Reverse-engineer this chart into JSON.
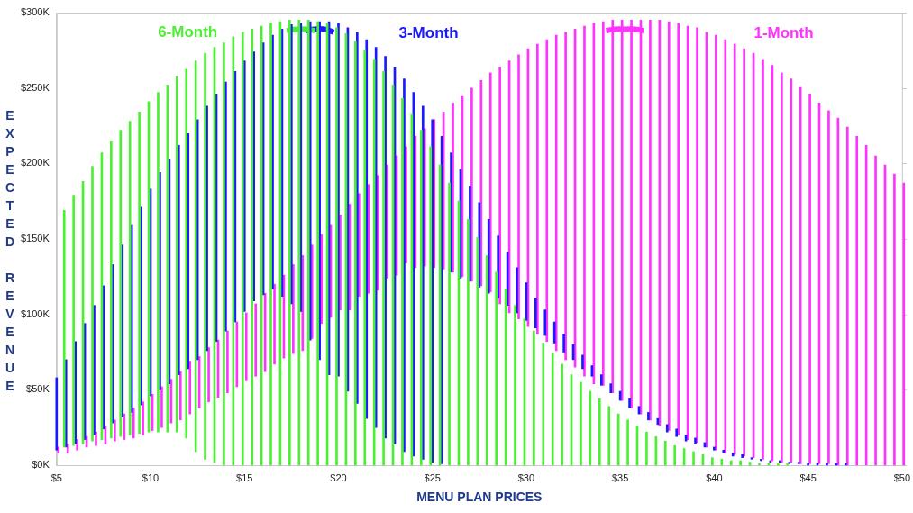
{
  "chart_data": {
    "type": "bar",
    "xlabel": "MENU PLAN PRICES",
    "ylabel": "EXPECTED REVENUE",
    "marker": "none",
    "x": [
      5,
      5.5,
      6,
      6.5,
      7,
      7.5,
      8,
      8.5,
      9,
      9.5,
      10,
      10.5,
      11,
      11.5,
      12,
      12.5,
      13,
      13.5,
      14,
      14.5,
      15,
      15.5,
      16,
      16.5,
      17,
      17.5,
      18,
      18.5,
      19,
      19.5,
      20,
      20.5,
      21,
      21.5,
      22,
      22.5,
      23,
      23.5,
      24,
      24.5,
      25,
      25.5,
      26,
      26.5,
      27,
      27.5,
      28,
      28.5,
      29,
      29.5,
      30,
      30.5,
      31,
      31.5,
      32,
      32.5,
      33,
      33.5,
      34,
      34.5,
      35,
      35.5,
      36,
      36.5,
      37,
      37.5,
      38,
      38.5,
      39,
      39.5,
      40,
      40.5,
      41,
      41.5,
      42,
      42.5,
      43,
      43.5,
      44,
      44.5,
      45,
      45.5,
      46,
      46.5,
      47,
      47.5,
      48,
      48.5,
      49,
      49.5,
      50
    ],
    "xlim": [
      5,
      50
    ],
    "xticks": [
      {
        "value": 5,
        "label": "$5"
      },
      {
        "value": 10,
        "label": "$10"
      },
      {
        "value": 15,
        "label": "$15"
      },
      {
        "value": 20,
        "label": "$20"
      },
      {
        "value": 25,
        "label": "$25"
      },
      {
        "value": 30,
        "label": "$30"
      },
      {
        "value": 35,
        "label": "$35"
      },
      {
        "value": 40,
        "label": "$40"
      },
      {
        "value": 45,
        "label": "$45"
      },
      {
        "value": 50,
        "label": "$50"
      }
    ],
    "ylim": [
      0,
      300
    ],
    "yticks": [
      {
        "value": 0,
        "label": "$0K"
      },
      {
        "value": 50,
        "label": "$50K"
      },
      {
        "value": 100,
        "label": "$100K"
      },
      {
        "value": 150,
        "label": "$150K"
      },
      {
        "value": 200,
        "label": "$200K"
      },
      {
        "value": 250,
        "label": "$250K"
      },
      {
        "value": 300,
        "label": "$300K"
      }
    ],
    "series": [
      {
        "name": "6-Month",
        "color": "#4cf032",
        "base": [
          null,
          12,
          13,
          14,
          16,
          17,
          18,
          19,
          20,
          21,
          22,
          22,
          22,
          22,
          18,
          9,
          4,
          2,
          0,
          0,
          0,
          0,
          0,
          0,
          0,
          0,
          0,
          0,
          0,
          0,
          0,
          0,
          0,
          0,
          0,
          0,
          0,
          0,
          0,
          0,
          0,
          0,
          0,
          0,
          0,
          0,
          0,
          0,
          0,
          0,
          0,
          0,
          0,
          0,
          0,
          0,
          0,
          0,
          0,
          0,
          0,
          0,
          0,
          0,
          0,
          0,
          0,
          0,
          0,
          0,
          0,
          0,
          0,
          0,
          0,
          0,
          0,
          0,
          0,
          null,
          null,
          null,
          null,
          null,
          null,
          null,
          null,
          null,
          null,
          null,
          null
        ],
        "values": [
          null,
          157,
          166,
          174,
          182,
          190,
          197,
          203,
          208,
          213,
          219,
          225,
          230,
          236,
          245,
          259,
          269,
          275,
          280,
          284,
          287,
          289,
          291,
          293,
          294,
          295,
          295,
          295,
          294,
          293,
          290,
          286,
          281,
          275,
          269,
          261,
          252,
          243,
          233,
          222,
          211,
          199,
          187,
          175,
          163,
          151,
          139,
          128,
          117,
          106,
          97,
          89,
          81,
          74,
          67,
          60,
          55,
          49,
          44,
          39,
          34,
          30,
          26,
          22,
          19,
          16,
          13,
          11,
          9,
          7,
          5,
          4,
          3,
          3,
          2,
          1,
          1,
          1,
          1,
          null,
          null,
          null,
          null,
          null,
          null,
          null,
          null,
          null,
          null,
          null,
          null
        ]
      },
      {
        "name": "3-Month",
        "color": "#1a1aff",
        "base": [
          10,
          12,
          14,
          17,
          20,
          24,
          28,
          32,
          35,
          40,
          46,
          50,
          54,
          60,
          64,
          70,
          76,
          82,
          89,
          95,
          102,
          109,
          113,
          117,
          112,
          107,
          102,
          83,
          70,
          60,
          59,
          49,
          41,
          31,
          25,
          18,
          14,
          9,
          6,
          4,
          2,
          1,
          128,
          124,
          122,
          118,
          114,
          111,
          106,
          101,
          96,
          91,
          86,
          81,
          75,
          70,
          64,
          59,
          53,
          48,
          43,
          38,
          34,
          30,
          27,
          22,
          19,
          16,
          14,
          12,
          10,
          8,
          6,
          5,
          4,
          3,
          2,
          2,
          1,
          1,
          0,
          0,
          0,
          0,
          0,
          null,
          null,
          null,
          null,
          null,
          null
        ],
        "values": [
          48,
          58,
          68,
          77,
          86,
          95,
          105,
          114,
          124,
          131,
          137,
          144,
          149,
          152,
          156,
          159,
          162,
          164,
          165,
          166,
          166,
          165,
          167,
          168,
          177,
          185,
          191,
          211,
          224,
          234,
          234,
          241,
          246,
          251,
          252,
          253,
          250,
          247,
          241,
          234,
          227,
          217,
          79,
          72,
          63,
          56,
          49,
          41,
          35,
          30,
          25,
          20,
          17,
          14,
          12,
          10,
          9,
          7,
          7,
          6,
          6,
          6,
          5,
          5,
          4,
          5,
          5,
          4,
          4,
          3,
          2,
          2,
          2,
          2,
          1,
          1,
          1,
          1,
          1,
          1,
          1,
          1,
          1,
          1,
          1,
          null,
          null,
          null,
          null,
          null,
          null
        ]
      },
      {
        "name": "1-Month",
        "color": "#ff33ff",
        "base": [
          8,
          8,
          10,
          12,
          13,
          14,
          16,
          17,
          18,
          20,
          23,
          25,
          28,
          30,
          34,
          38,
          42,
          45,
          48,
          52,
          56,
          59,
          62,
          67,
          71,
          74,
          76,
          84,
          94,
          98,
          103,
          103,
          112,
          114,
          116,
          124,
          126,
          134,
          131,
          132,
          131,
          130,
          128,
          125,
          122,
          119,
          115,
          107,
          101,
          97,
          92,
          87,
          82,
          76,
          70,
          65,
          59,
          54,
          53,
          48,
          43,
          38,
          34,
          30,
          26,
          23,
          20,
          17,
          15,
          12,
          10,
          8,
          7,
          6,
          5,
          4,
          3,
          2,
          2,
          1,
          1,
          1,
          1,
          0,
          0,
          0,
          0,
          0,
          0,
          0,
          0
        ],
        "values": [
          4,
          6,
          7,
          7,
          9,
          12,
          14,
          17,
          20,
          22,
          24,
          27,
          29,
          32,
          35,
          34,
          36,
          38,
          41,
          43,
          45,
          48,
          52,
          53,
          55,
          59,
          63,
          62,
          59,
          61,
          63,
          70,
          68,
          72,
          76,
          75,
          79,
          77,
          87,
          91,
          98,
          104,
          112,
          120,
          128,
          136,
          145,
          157,
          167,
          175,
          184,
          192,
          200,
          209,
          217,
          224,
          232,
          239,
          241,
          247,
          252,
          257,
          261,
          265,
          269,
          271,
          273,
          274,
          275,
          275,
          275,
          274,
          272,
          270,
          268,
          265,
          262,
          258,
          254,
          250,
          245,
          239,
          234,
          230,
          224,
          218,
          212,
          205,
          199,
          193,
          187
        ]
      },
      {
        "type": "line",
        "color": "#4cf032",
        "x": [
          17.25,
          17.75,
          18.25,
          18.75
        ],
        "values": [
          288,
          289,
          289,
          288
        ]
      },
      {
        "type": "line",
        "color": "#1a1aff",
        "x": [
          18.25,
          18.75,
          19.25,
          19.75
        ],
        "values": [
          288,
          289,
          289,
          287
        ]
      },
      {
        "type": "line",
        "color": "#ff33ff",
        "x": [
          34.25,
          34.75,
          35.25,
          35.75,
          36.25
        ],
        "values": [
          288,
          289,
          289,
          289,
          288
        ]
      }
    ]
  }
}
